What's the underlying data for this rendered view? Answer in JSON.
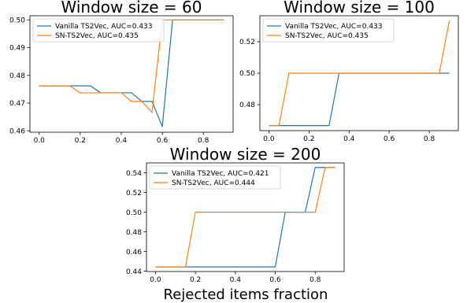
{
  "figure": {
    "xlabel": "Rejected items fraction"
  },
  "colors": {
    "vanilla": "#1f77b4",
    "sn": "#ff7f0e"
  },
  "chart_data": [
    {
      "type": "line",
      "title": "Window size = 60",
      "xlim": [
        -0.045,
        0.945
      ],
      "ylim": [
        0.4595,
        0.5015
      ],
      "xticks": [
        0.0,
        0.2,
        0.4,
        0.6,
        0.8
      ],
      "xtick_labels": [
        "0.0",
        "0.2",
        "0.4",
        "0.6",
        "0.8"
      ],
      "yticks": [
        0.46,
        0.47,
        0.48,
        0.49,
        0.5
      ],
      "ytick_labels": [
        "0.46",
        "0.47",
        "0.48",
        "0.49",
        "0.50"
      ],
      "legend_position": "upper-left",
      "series": [
        {
          "name": "Vanilla TS2Vec, AUC=0.433",
          "color": "#1f77b4",
          "x": [
            0.0,
            0.05,
            0.1,
            0.15,
            0.2,
            0.25,
            0.3,
            0.35,
            0.4,
            0.45,
            0.5,
            0.55,
            0.6,
            0.65,
            0.7,
            0.75,
            0.8,
            0.85,
            0.9
          ],
          "y": [
            0.4762,
            0.4762,
            0.4762,
            0.4762,
            0.4762,
            0.4762,
            0.4737,
            0.4737,
            0.4737,
            0.4737,
            0.4706,
            0.4706,
            0.4615,
            0.5,
            0.5,
            0.5,
            0.5,
            0.5,
            0.5
          ]
        },
        {
          "name": "SN-TS2Vec, AUC=0.435",
          "color": "#ff7f0e",
          "x": [
            0.0,
            0.05,
            0.1,
            0.15,
            0.2,
            0.25,
            0.3,
            0.35,
            0.4,
            0.45,
            0.5,
            0.55,
            0.6,
            0.65,
            0.7,
            0.75,
            0.8,
            0.85,
            0.9
          ],
          "y": [
            0.4762,
            0.4762,
            0.4762,
            0.4762,
            0.4737,
            0.4737,
            0.4737,
            0.4737,
            0.4737,
            0.4706,
            0.4706,
            0.4667,
            0.5,
            0.5,
            0.5,
            0.5,
            0.5,
            0.5,
            0.5
          ]
        }
      ]
    },
    {
      "type": "line",
      "title": "Window size = 100",
      "xlim": [
        -0.045,
        0.945
      ],
      "ylim": [
        0.4635,
        0.5365
      ],
      "xticks": [
        0.0,
        0.2,
        0.4,
        0.6,
        0.8
      ],
      "xtick_labels": [
        "0.0",
        "0.2",
        "0.4",
        "0.6",
        "0.8"
      ],
      "yticks": [
        0.48,
        0.5,
        0.52
      ],
      "ytick_labels": [
        "0.48",
        "0.50",
        "0.52"
      ],
      "legend_position": "upper-left",
      "series": [
        {
          "name": "Vanilla TS2Vec, AUC=0.433",
          "color": "#1f77b4",
          "x": [
            0.0,
            0.05,
            0.1,
            0.15,
            0.2,
            0.25,
            0.3,
            0.35,
            0.4,
            0.45,
            0.5,
            0.55,
            0.6,
            0.65,
            0.7,
            0.75,
            0.8,
            0.85,
            0.9
          ],
          "y": [
            0.4667,
            0.4667,
            0.4667,
            0.4667,
            0.4667,
            0.4667,
            0.4667,
            0.5,
            0.5,
            0.5,
            0.5,
            0.5,
            0.5,
            0.5,
            0.5,
            0.5,
            0.5,
            0.5,
            0.5
          ]
        },
        {
          "name": "SN-TS2Vec, AUC=0.435",
          "color": "#ff7f0e",
          "x": [
            0.0,
            0.05,
            0.1,
            0.15,
            0.2,
            0.25,
            0.3,
            0.35,
            0.4,
            0.45,
            0.5,
            0.55,
            0.6,
            0.65,
            0.7,
            0.75,
            0.8,
            0.85,
            0.9
          ],
          "y": [
            0.4667,
            0.4667,
            0.5,
            0.5,
            0.5,
            0.5,
            0.5,
            0.5,
            0.5,
            0.5,
            0.5,
            0.5,
            0.5,
            0.5,
            0.5,
            0.5,
            0.5,
            0.5,
            0.5333
          ]
        }
      ]
    },
    {
      "type": "line",
      "title": "Window size = 200",
      "xlim": [
        -0.045,
        0.945
      ],
      "ylim": [
        0.4397,
        0.5501
      ],
      "xticks": [
        0.0,
        0.2,
        0.4,
        0.6,
        0.8
      ],
      "xtick_labels": [
        "0.0",
        "0.2",
        "0.4",
        "0.6",
        "0.8"
      ],
      "yticks": [
        0.44,
        0.46,
        0.48,
        0.5,
        0.52,
        0.54
      ],
      "ytick_labels": [
        "0.44",
        "0.46",
        "0.48",
        "0.50",
        "0.52",
        "0.54"
      ],
      "legend_position": "upper-left",
      "series": [
        {
          "name": "Vanilla TS2Vec, AUC=0.421",
          "color": "#1f77b4",
          "x": [
            0.0,
            0.05,
            0.1,
            0.15,
            0.2,
            0.25,
            0.3,
            0.35,
            0.4,
            0.45,
            0.5,
            0.55,
            0.6,
            0.65,
            0.7,
            0.75,
            0.8,
            0.85,
            0.9
          ],
          "y": [
            0.4444,
            0.4444,
            0.4444,
            0.4444,
            0.4444,
            0.4444,
            0.4444,
            0.4444,
            0.4444,
            0.4444,
            0.4444,
            0.4444,
            0.4444,
            0.5,
            0.5,
            0.5,
            0.5455,
            0.5455,
            0.5455
          ]
        },
        {
          "name": "SN-TS2Vec, AUC=0.444",
          "color": "#ff7f0e",
          "x": [
            0.0,
            0.05,
            0.1,
            0.15,
            0.2,
            0.25,
            0.3,
            0.35,
            0.4,
            0.45,
            0.5,
            0.55,
            0.6,
            0.65,
            0.7,
            0.75,
            0.8,
            0.85,
            0.9
          ],
          "y": [
            0.4444,
            0.4444,
            0.4444,
            0.4444,
            0.5,
            0.5,
            0.5,
            0.5,
            0.5,
            0.5,
            0.5,
            0.5,
            0.5,
            0.5,
            0.5,
            0.5,
            0.5,
            0.5455,
            0.5455
          ]
        }
      ]
    }
  ]
}
